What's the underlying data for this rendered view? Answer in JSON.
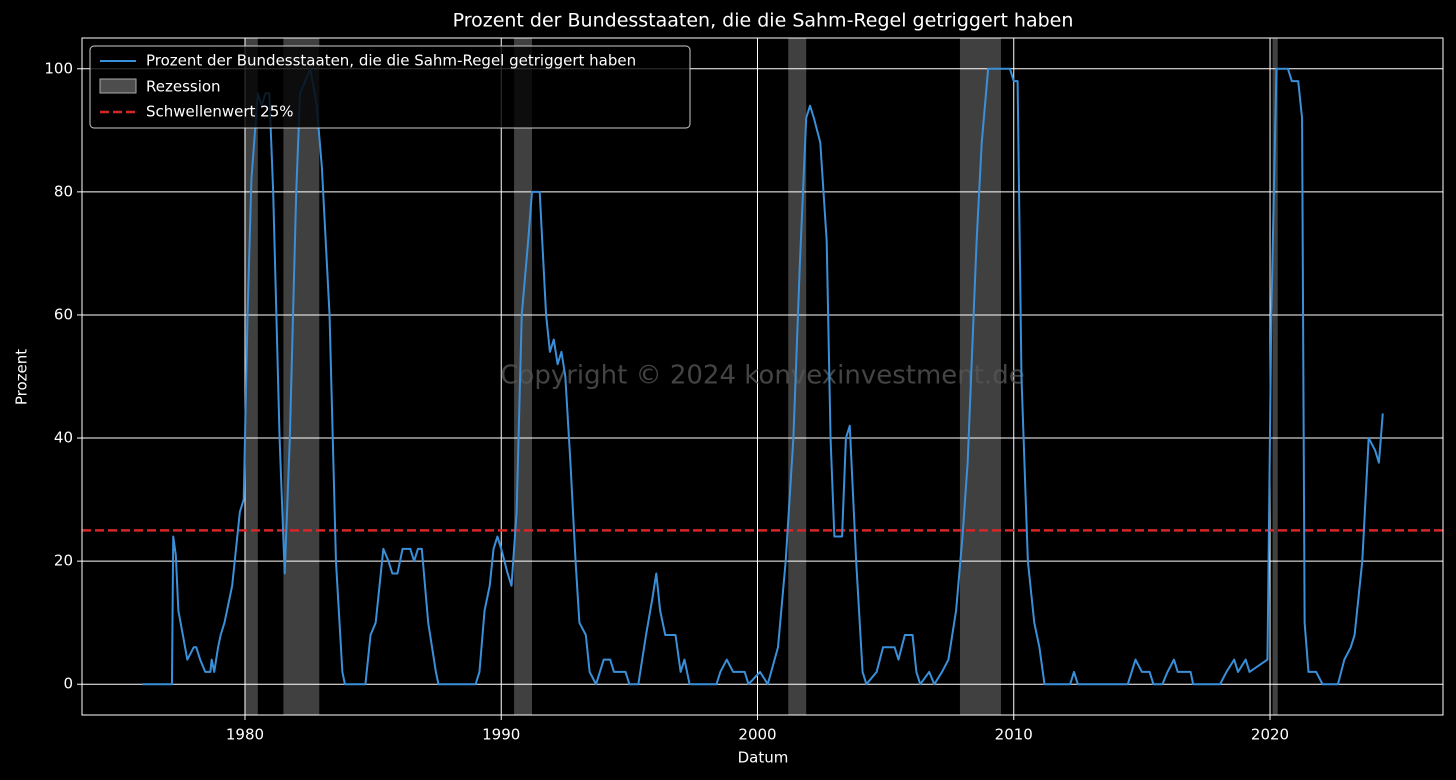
{
  "chart_data": {
    "type": "line",
    "title": "Prozent der Bundesstaaten, die die Sahm-Regel getriggert haben",
    "xlabel": "Datum",
    "ylabel": "Prozent",
    "watermark": "Copyright © 2024 konvexinvestment.de",
    "xlim": [
      1973.64,
      2026.75
    ],
    "xticks": [
      1980,
      1990,
      2000,
      2010,
      2020
    ],
    "ylim": [
      -5,
      105
    ],
    "yticks": [
      0,
      20,
      40,
      60,
      80,
      100
    ],
    "grid": true,
    "legend": "upper left",
    "x": [
      1976.0,
      1977.15,
      1977.2,
      1977.3,
      1977.4,
      1977.75,
      1978.0,
      1978.1,
      1978.25,
      1978.45,
      1978.65,
      1978.7,
      1978.8,
      1978.95,
      1979.05,
      1979.2,
      1979.5,
      1979.65,
      1979.8,
      1979.95,
      1980.1,
      1980.25,
      1980.5,
      1980.65,
      1980.8,
      1980.95,
      1981.1,
      1981.35,
      1981.55,
      1981.75,
      1982.0,
      1982.15,
      1982.55,
      1982.8,
      1983.0,
      1983.3,
      1983.55,
      1983.8,
      1983.9,
      1984.7,
      1984.9,
      1985.1,
      1985.25,
      1985.4,
      1985.6,
      1985.75,
      1985.95,
      1986.15,
      1986.45,
      1986.6,
      1986.75,
      1986.9,
      1987.15,
      1987.3,
      1987.45,
      1987.55,
      1989.0,
      1989.15,
      1989.35,
      1989.55,
      1989.7,
      1989.85,
      1990.0,
      1990.25,
      1990.4,
      1990.6,
      1990.8,
      1991.05,
      1991.2,
      1991.5,
      1991.75,
      1991.9,
      1992.05,
      1992.2,
      1992.35,
      1992.5,
      1992.7,
      1992.9,
      1993.05,
      1993.3,
      1993.45,
      1993.7,
      1994.0,
      1994.25,
      1994.4,
      1994.85,
      1995.0,
      1995.35,
      1995.65,
      1995.9,
      1996.05,
      1996.2,
      1996.4,
      1996.8,
      1997.0,
      1997.15,
      1997.35,
      1998.4,
      1998.55,
      1998.8,
      1999.05,
      1999.5,
      1999.65,
      2000.1,
      2000.4,
      2000.8,
      2001.1,
      2001.4,
      2001.65,
      2001.9,
      2002.05,
      2002.2,
      2002.45,
      2002.7,
      2002.85,
      2003.0,
      2003.3,
      2003.45,
      2003.6,
      2003.85,
      2004.1,
      2004.25,
      2004.65,
      2004.9,
      2005.35,
      2005.5,
      2005.75,
      2006.05,
      2006.2,
      2006.35,
      2006.7,
      2006.9,
      2007.2,
      2007.45,
      2007.75,
      2008.0,
      2008.2,
      2008.55,
      2008.75,
      2009.0,
      2009.85,
      2010.0,
      2010.15,
      2010.3,
      2010.55,
      2010.8,
      2011.0,
      2011.2,
      2012.2,
      2012.35,
      2012.5,
      2014.45,
      2014.6,
      2014.75,
      2015.0,
      2015.3,
      2015.45,
      2015.8,
      2016.0,
      2016.25,
      2016.4,
      2016.9,
      2017.0,
      2018.05,
      2018.3,
      2018.6,
      2018.75,
      2019.05,
      2019.2,
      2019.9,
      2020.05,
      2020.25,
      2020.7,
      2020.85,
      2021.1,
      2021.25,
      2021.35,
      2021.5,
      2021.8,
      2022.05,
      2022.65,
      2022.9,
      2023.15,
      2023.3,
      2023.6,
      2023.85,
      2024.1,
      2024.25,
      2024.4
    ],
    "series": [
      {
        "name": "Prozent der Bundesstaaten, die die Sahm-Regel getriggert haben",
        "color": "#3a8fd9",
        "values": [
          0,
          0,
          24,
          21,
          12,
          4,
          6,
          6,
          4,
          2,
          2,
          4,
          2,
          6,
          8,
          10,
          16,
          22,
          28,
          30,
          60,
          82,
          96,
          94,
          96,
          96,
          80,
          40,
          18,
          40,
          80,
          96,
          100,
          94,
          84,
          60,
          20,
          2,
          0,
          0,
          8,
          10,
          16,
          22,
          20,
          18,
          18,
          22,
          22,
          20,
          22,
          22,
          10,
          6,
          2,
          0,
          0,
          2,
          12,
          16,
          22,
          24,
          22,
          18,
          16,
          28,
          60,
          72,
          80,
          80,
          60,
          54,
          56,
          52,
          54,
          50,
          36,
          20,
          10,
          8,
          2,
          0,
          4,
          4,
          2,
          2,
          0,
          0,
          8,
          14,
          18,
          12,
          8,
          8,
          2,
          4,
          0,
          0,
          2,
          4,
          2,
          2,
          0,
          2,
          0,
          6,
          20,
          40,
          68,
          92,
          94,
          92,
          88,
          72,
          40,
          24,
          24,
          40,
          42,
          20,
          2,
          0,
          2,
          6,
          6,
          4,
          8,
          8,
          2,
          0,
          2,
          0,
          2,
          4,
          12,
          24,
          36,
          72,
          88,
          100,
          100,
          98,
          98,
          50,
          20,
          10,
          6,
          0,
          0,
          2,
          0,
          0,
          2,
          4,
          2,
          2,
          0,
          0,
          2,
          4,
          2,
          2,
          0,
          0,
          2,
          4,
          2,
          4,
          2,
          4,
          60,
          100,
          100,
          98,
          98,
          92,
          10,
          2,
          2,
          0,
          0,
          4,
          6,
          8,
          20,
          40,
          38,
          36,
          44
        ]
      }
    ],
    "recessions": {
      "name": "Rezession",
      "color": "#808080",
      "spans": [
        [
          1980.0,
          1980.5
        ],
        [
          1981.5,
          1982.9
        ],
        [
          1990.5,
          1991.2
        ],
        [
          2001.2,
          2001.9
        ],
        [
          2007.9,
          2009.5
        ],
        [
          2020.1,
          2020.3
        ]
      ]
    },
    "threshold": {
      "name": "Schwellenwert 25%",
      "value": 25,
      "color": "#d62728"
    }
  }
}
